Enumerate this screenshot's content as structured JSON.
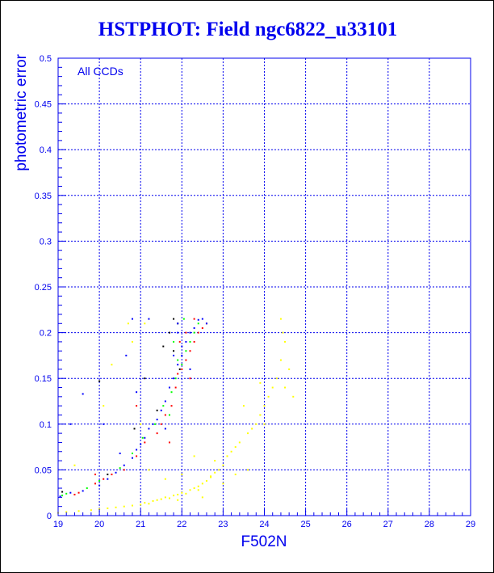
{
  "chart_data": {
    "type": "scatter",
    "title": "HSTPHOT: Field ngc6822_u33101",
    "xlabel": "F502N",
    "ylabel": "photometric error",
    "annotation": "All CCDs",
    "xlim": [
      19,
      29
    ],
    "ylim": [
      0,
      0.5
    ],
    "xticks": [
      "19",
      "20",
      "21",
      "22",
      "23",
      "24",
      "25",
      "26",
      "27",
      "28",
      "29"
    ],
    "yticks": [
      "0",
      "0.05",
      "0.1",
      "0.15",
      "0.2",
      "0.25",
      "0.3",
      "0.35",
      "0.4",
      "0.45",
      "0.5"
    ],
    "grid": true,
    "series": [
      {
        "name": "blue",
        "color": "#0000ff",
        "points": [
          [
            19.05,
            0.021
          ],
          [
            19.3,
            0.1
          ],
          [
            19.6,
            0.133
          ],
          [
            19.3,
            0.025
          ],
          [
            19.6,
            0.027
          ],
          [
            20.0,
            0.033
          ],
          [
            20.2,
            0.04
          ],
          [
            20.4,
            0.047
          ],
          [
            20.6,
            0.055
          ],
          [
            20.8,
            0.063
          ],
          [
            20.9,
            0.072
          ],
          [
            21.0,
            0.078
          ],
          [
            21.1,
            0.085
          ],
          [
            21.2,
            0.095
          ],
          [
            21.3,
            0.1
          ],
          [
            21.4,
            0.105
          ],
          [
            21.5,
            0.115
          ],
          [
            21.6,
            0.125
          ],
          [
            21.7,
            0.14
          ],
          [
            21.8,
            0.15
          ],
          [
            21.9,
            0.165
          ],
          [
            22.0,
            0.175
          ],
          [
            22.1,
            0.19
          ],
          [
            22.2,
            0.2
          ],
          [
            22.3,
            0.205
          ],
          [
            22.4,
            0.214
          ],
          [
            22.5,
            0.215
          ],
          [
            21.9,
            0.21
          ],
          [
            22.0,
            0.185
          ],
          [
            21.8,
            0.175
          ],
          [
            20.65,
            0.175
          ],
          [
            20.8,
            0.215
          ],
          [
            20.9,
            0.135
          ],
          [
            21.2,
            0.215
          ],
          [
            20.1,
            0.1
          ],
          [
            21.9,
            0.2
          ],
          [
            22.2,
            0.16
          ],
          [
            21.6,
            0.095
          ],
          [
            20.5,
            0.068
          ],
          [
            22.6,
            0.21
          ]
        ]
      },
      {
        "name": "red",
        "color": "#ff0000",
        "points": [
          [
            19.4,
            0.023
          ],
          [
            19.5,
            0.025
          ],
          [
            19.9,
            0.035
          ],
          [
            20.1,
            0.04
          ],
          [
            20.3,
            0.045
          ],
          [
            20.6,
            0.05
          ],
          [
            20.9,
            0.065
          ],
          [
            21.1,
            0.08
          ],
          [
            21.4,
            0.09
          ],
          [
            21.5,
            0.1
          ],
          [
            21.6,
            0.11
          ],
          [
            21.75,
            0.12
          ],
          [
            21.85,
            0.14
          ],
          [
            21.9,
            0.155
          ],
          [
            22.0,
            0.16
          ],
          [
            22.1,
            0.17
          ],
          [
            22.2,
            0.18
          ],
          [
            22.3,
            0.19
          ],
          [
            22.4,
            0.2
          ],
          [
            22.6,
            0.21
          ],
          [
            22.5,
            0.205
          ],
          [
            22.1,
            0.2
          ],
          [
            21.95,
            0.19
          ],
          [
            22.2,
            0.15
          ],
          [
            20.9,
            0.12
          ],
          [
            21.7,
            0.08
          ],
          [
            19.9,
            0.045
          ],
          [
            22.3,
            0.215
          ]
        ]
      },
      {
        "name": "green",
        "color": "#00ff00",
        "points": [
          [
            19.1,
            0.022
          ],
          [
            19.2,
            0.024
          ],
          [
            19.7,
            0.03
          ],
          [
            20.0,
            0.038
          ],
          [
            20.5,
            0.052
          ],
          [
            20.8,
            0.068
          ],
          [
            21.05,
            0.085
          ],
          [
            21.35,
            0.1
          ],
          [
            21.55,
            0.12
          ],
          [
            21.75,
            0.135
          ],
          [
            21.85,
            0.15
          ],
          [
            22.0,
            0.165
          ],
          [
            22.1,
            0.18
          ],
          [
            22.2,
            0.19
          ],
          [
            22.3,
            0.2
          ],
          [
            22.4,
            0.21
          ],
          [
            22.05,
            0.215
          ],
          [
            21.9,
            0.17
          ],
          [
            21.7,
            0.11
          ],
          [
            21.8,
            0.19
          ]
        ]
      },
      {
        "name": "black",
        "color": "#000000",
        "points": [
          [
            19.1,
            0.026
          ],
          [
            20.0,
            0.147
          ],
          [
            20.2,
            0.045
          ],
          [
            20.85,
            0.095
          ],
          [
            21.1,
            0.15
          ],
          [
            21.4,
            0.115
          ],
          [
            21.55,
            0.185
          ],
          [
            21.7,
            0.2
          ],
          [
            21.8,
            0.18
          ],
          [
            21.8,
            0.215
          ],
          [
            21.95,
            0.16
          ],
          [
            21.9,
            0.21
          ]
        ]
      },
      {
        "name": "yellow",
        "color": "#ffff00",
        "points": [
          [
            19.0,
            0.003
          ],
          [
            19.2,
            0.004
          ],
          [
            19.5,
            0.005
          ],
          [
            19.8,
            0.006
          ],
          [
            20.0,
            0.007
          ],
          [
            20.2,
            0.008
          ],
          [
            20.4,
            0.009
          ],
          [
            20.6,
            0.01
          ],
          [
            20.8,
            0.011
          ],
          [
            21.0,
            0.012
          ],
          [
            21.1,
            0.014
          ],
          [
            21.2,
            0.013
          ],
          [
            21.3,
            0.016
          ],
          [
            21.4,
            0.017
          ],
          [
            21.5,
            0.018
          ],
          [
            21.6,
            0.02
          ],
          [
            21.7,
            0.019
          ],
          [
            21.8,
            0.022
          ],
          [
            21.9,
            0.023
          ],
          [
            22.0,
            0.025
          ],
          [
            22.1,
            0.024
          ],
          [
            22.2,
            0.028
          ],
          [
            22.3,
            0.03
          ],
          [
            22.4,
            0.032
          ],
          [
            22.5,
            0.035
          ],
          [
            22.6,
            0.038
          ],
          [
            22.7,
            0.043
          ],
          [
            22.8,
            0.047
          ],
          [
            22.9,
            0.05
          ],
          [
            23.0,
            0.055
          ],
          [
            23.1,
            0.065
          ],
          [
            23.3,
            0.075
          ],
          [
            23.4,
            0.08
          ],
          [
            23.6,
            0.09
          ],
          [
            23.7,
            0.095
          ],
          [
            23.8,
            0.1
          ],
          [
            23.9,
            0.11
          ],
          [
            24.0,
            0.12
          ],
          [
            24.1,
            0.13
          ],
          [
            24.2,
            0.14
          ],
          [
            24.3,
            0.15
          ],
          [
            24.4,
            0.17
          ],
          [
            24.45,
            0.2
          ],
          [
            24.5,
            0.19
          ],
          [
            24.4,
            0.215
          ],
          [
            24.6,
            0.16
          ],
          [
            24.5,
            0.14
          ],
          [
            24.7,
            0.13
          ],
          [
            23.9,
            0.145
          ],
          [
            24.0,
            0.1
          ],
          [
            23.5,
            0.12
          ],
          [
            23.2,
            0.07
          ],
          [
            23.6,
            0.05
          ],
          [
            22.0,
            0.045
          ],
          [
            21.2,
            0.05
          ],
          [
            20.3,
            0.165
          ],
          [
            20.8,
            0.19
          ],
          [
            21.0,
            0.1
          ],
          [
            20.1,
            0.12
          ],
          [
            22.3,
            0.065
          ],
          [
            22.8,
            0.06
          ],
          [
            23.9,
            0.11
          ],
          [
            21.6,
            0.04
          ],
          [
            22.5,
            0.02
          ],
          [
            23.0,
            0.035
          ],
          [
            19.4,
            0.055
          ],
          [
            20.7,
            0.21
          ],
          [
            21.1,
            0.21
          ],
          [
            22.7,
            0.042
          ],
          [
            22.4,
            0.028
          ],
          [
            21.9,
            0.017
          ],
          [
            23.3,
            0.045
          ]
        ]
      }
    ]
  }
}
